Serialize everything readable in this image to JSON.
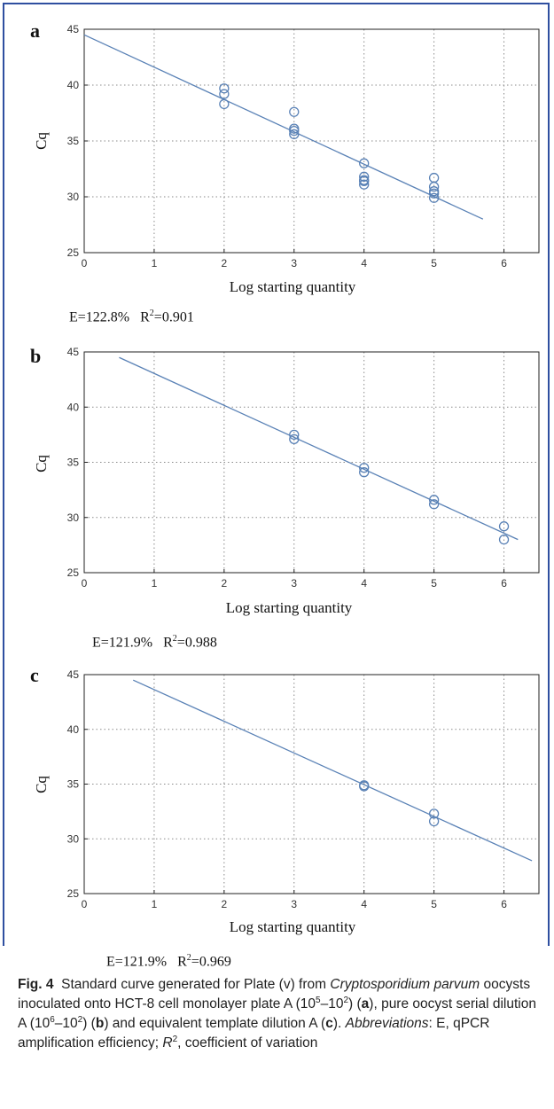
{
  "chart_data": [
    {
      "type": "scatter",
      "panel": "a",
      "xlabel": "Log starting quantity",
      "ylabel": "Cq",
      "xlim": [
        0,
        6.5
      ],
      "ylim": [
        25,
        45
      ],
      "xticks": [
        0,
        1,
        2,
        3,
        4,
        5,
        6
      ],
      "yticks": [
        25,
        30,
        35,
        40,
        45
      ],
      "grid": true,
      "points": [
        [
          2,
          39.7
        ],
        [
          2,
          39.2
        ],
        [
          2,
          38.3
        ],
        [
          3,
          37.6
        ],
        [
          3,
          36.1
        ],
        [
          3,
          35.9
        ],
        [
          3,
          35.6
        ],
        [
          4,
          33.0
        ],
        [
          4,
          31.8
        ],
        [
          4,
          31.5
        ],
        [
          4,
          31.4
        ],
        [
          4,
          31.1
        ],
        [
          5,
          31.7
        ],
        [
          5,
          30.9
        ],
        [
          5,
          30.5
        ],
        [
          5,
          30.3
        ],
        [
          5,
          29.9
        ]
      ],
      "fit_line": [
        [
          0,
          44.5
        ],
        [
          5.7,
          28.0
        ]
      ],
      "efficiency": "E=122.8%",
      "r2_label": "R",
      "r2_value": "=0.901"
    },
    {
      "type": "scatter",
      "panel": "b",
      "xlabel": "Log starting quantity",
      "ylabel": "Cq",
      "xlim": [
        0,
        6.5
      ],
      "ylim": [
        25,
        45
      ],
      "xticks": [
        0,
        1,
        2,
        3,
        4,
        5,
        6
      ],
      "yticks": [
        25,
        30,
        35,
        40,
        45
      ],
      "grid": true,
      "points": [
        [
          3,
          37.5
        ],
        [
          3,
          37.1
        ],
        [
          4,
          34.5
        ],
        [
          4,
          34.1
        ],
        [
          5,
          31.6
        ],
        [
          5,
          31.2
        ],
        [
          6,
          29.2
        ],
        [
          6,
          28.0
        ]
      ],
      "fit_line": [
        [
          0.5,
          44.5
        ],
        [
          6.2,
          28.0
        ]
      ],
      "efficiency": "E=121.9%",
      "r2_label": "R",
      "r2_value": "=0.988"
    },
    {
      "type": "scatter",
      "panel": "c",
      "xlabel": "Log starting quantity",
      "ylabel": "Cq",
      "xlim": [
        0,
        6.5
      ],
      "ylim": [
        25,
        45
      ],
      "xticks": [
        0,
        1,
        2,
        3,
        4,
        5,
        6
      ],
      "yticks": [
        25,
        30,
        35,
        40,
        45
      ],
      "grid": true,
      "points": [
        [
          4,
          34.9
        ],
        [
          4,
          34.8
        ],
        [
          5,
          32.3
        ],
        [
          5,
          31.6
        ]
      ],
      "fit_line": [
        [
          0.7,
          44.5
        ],
        [
          6.4,
          28.0
        ]
      ],
      "efficiency": "E=121.9%",
      "r2_label": "R",
      "r2_value": "=0.969"
    }
  ],
  "colors": {
    "marker": "#5a82b6",
    "line": "#5a82b6",
    "grid": "#8a8a8a",
    "frame": "#2f4fa0"
  },
  "caption": {
    "fig_label": "Fig. 4",
    "t1": "Standard curve generated for Plate (v) from ",
    "t2": "Cryptosporidium parvum",
    "t3": " oocysts inoculated onto HCT-8 cell monolayer plate A (10",
    "s1": "5",
    "t4": "–10",
    "s2": "2",
    "t5": ") (",
    "t6": "a",
    "t7": "), pure oocyst serial dilution A (10",
    "s3": "6",
    "t8": "–10",
    "s4": "2",
    "t9": ") (",
    "t10": "b",
    "t11": ") and equivalent template dilution A (",
    "t12": "c",
    "t13": "). ",
    "t14": "Abbreviations",
    "t15": ": E, qPCR amplification efficiency; ",
    "t16": "R",
    "s5": "2",
    "t17": ", coefficient of variation"
  }
}
